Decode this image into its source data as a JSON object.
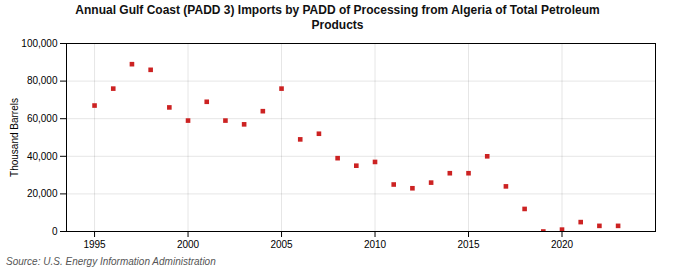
{
  "chart_data": {
    "type": "scatter",
    "title": "Annual Gulf Coast (PADD 3) Imports by PADD of Processing from Algeria of Total Petroleum\nProducts",
    "ylabel": "Thousand Barrels",
    "annotations": [
      "Source: U.S. Energy Information Administration"
    ],
    "x": [
      1995,
      1996,
      1997,
      1998,
      1999,
      2000,
      2001,
      2002,
      2003,
      2004,
      2005,
      2006,
      2007,
      2008,
      2009,
      2010,
      2011,
      2012,
      2013,
      2014,
      2015,
      2016,
      2017,
      2018,
      2019,
      2020,
      2021,
      2022,
      2023
    ],
    "values": [
      67000,
      76000,
      89000,
      86000,
      66000,
      59000,
      69000,
      59000,
      57000,
      64000,
      76000,
      49000,
      52000,
      39000,
      35000,
      37000,
      25000,
      23000,
      26000,
      31000,
      31000,
      40000,
      24000,
      12000,
      0,
      1000,
      5000,
      3000,
      3000
    ],
    "color": "#cc2222",
    "marker": "square",
    "xlim": [
      1993.5,
      2025
    ],
    "xticks": [
      1995,
      2000,
      2005,
      2010,
      2015,
      2020
    ],
    "ylim": [
      0,
      100000
    ],
    "yticks": [
      0,
      {
        "value": 20000,
        "label": "20,000"
      },
      {
        "value": 40000,
        "label": "40,000"
      },
      {
        "value": 60000,
        "label": "60,000"
      },
      {
        "value": 80000,
        "label": "80,000"
      },
      {
        "value": 100000,
        "label": "100,000"
      }
    ],
    "grid": true
  }
}
